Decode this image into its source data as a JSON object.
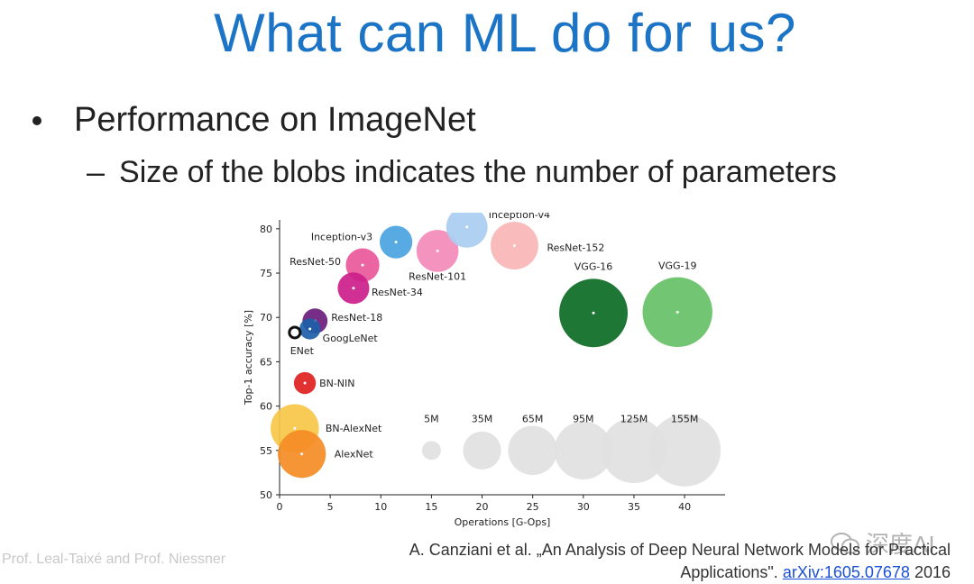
{
  "slide": {
    "title": "What can ML do for us?",
    "bullet": "Performance on ImageNet",
    "sub_bullet": "Size of the blobs indicates the number of parameters",
    "footer_left": "Prof. Leal-Taixé and Prof. Niessner",
    "citation_line1": "A. Canziani et al. „An Analysis of Deep Neural Network Models for Practical",
    "citation_line2_text": "Applications\".",
    "citation_link": "arXiv:1605.07678",
    "citation_year": "2016",
    "watermark_text": "深度AI"
  },
  "colors": {
    "title": "#1b74c5",
    "link": "#1a4fd8"
  },
  "chart_data": {
    "type": "scatter",
    "xlabel": "Operations [G-Ops]",
    "ylabel": "Top-1 accuracy [%]",
    "xlim": [
      0,
      44
    ],
    "ylim": [
      50,
      81
    ],
    "xticks": [
      0,
      5,
      10,
      15,
      20,
      25,
      30,
      35,
      40
    ],
    "yticks": [
      50,
      55,
      60,
      65,
      70,
      75,
      80
    ],
    "points": [
      {
        "name": "AlexNet",
        "x": 2.2,
        "y": 54.6,
        "params_m": 61,
        "color": "#f48c24"
      },
      {
        "name": "BN-AlexNet",
        "x": 1.5,
        "y": 57.5,
        "params_m": 62,
        "color": "#f7c548"
      },
      {
        "name": "BN-NIN",
        "x": 2.5,
        "y": 62.6,
        "params_m": 8,
        "color": "#e01f1f"
      },
      {
        "name": "ENet",
        "x": 1.5,
        "y": 68.3,
        "params_m": 0.4,
        "color": "#111111"
      },
      {
        "name": "GoogLeNet",
        "x": 3.0,
        "y": 68.7,
        "params_m": 7,
        "color": "#1c5fa8"
      },
      {
        "name": "ResNet-18",
        "x": 3.5,
        "y": 69.6,
        "params_m": 11.7,
        "color": "#6b1c7c"
      },
      {
        "name": "ResNet-34",
        "x": 7.3,
        "y": 73.3,
        "params_m": 21.8,
        "color": "#cc1e8a"
      },
      {
        "name": "ResNet-50",
        "x": 8.2,
        "y": 75.9,
        "params_m": 25.6,
        "color": "#e8589a"
      },
      {
        "name": "Inception-v3",
        "x": 11.5,
        "y": 78.5,
        "params_m": 23.8,
        "color": "#4aa3e0"
      },
      {
        "name": "ResNet-101",
        "x": 15.6,
        "y": 77.5,
        "params_m": 44.5,
        "color": "#f38ab8"
      },
      {
        "name": "Inception-v4",
        "x": 18.5,
        "y": 80.2,
        "params_m": 42.7,
        "color": "#a9cdf0"
      },
      {
        "name": "ResNet-152",
        "x": 23.2,
        "y": 78.1,
        "params_m": 60.2,
        "color": "#f9b5b5"
      },
      {
        "name": "VGG-16",
        "x": 31.0,
        "y": 70.5,
        "params_m": 138,
        "color": "#0c6b24"
      },
      {
        "name": "VGG-19",
        "x": 39.3,
        "y": 70.6,
        "params_m": 144,
        "color": "#66c066"
      }
    ],
    "size_legend": [
      {
        "label": "5M",
        "x": 15,
        "y": 55,
        "params_m": 5
      },
      {
        "label": "35M",
        "x": 20,
        "y": 55,
        "params_m": 35
      },
      {
        "label": "65M",
        "x": 25,
        "y": 55,
        "params_m": 65
      },
      {
        "label": "95M",
        "x": 30,
        "y": 55,
        "params_m": 95
      },
      {
        "label": "125M",
        "x": 35,
        "y": 55,
        "params_m": 125
      },
      {
        "label": "155M",
        "x": 40,
        "y": 55,
        "params_m": 155
      }
    ],
    "legend_color": "#e0e0e0"
  }
}
